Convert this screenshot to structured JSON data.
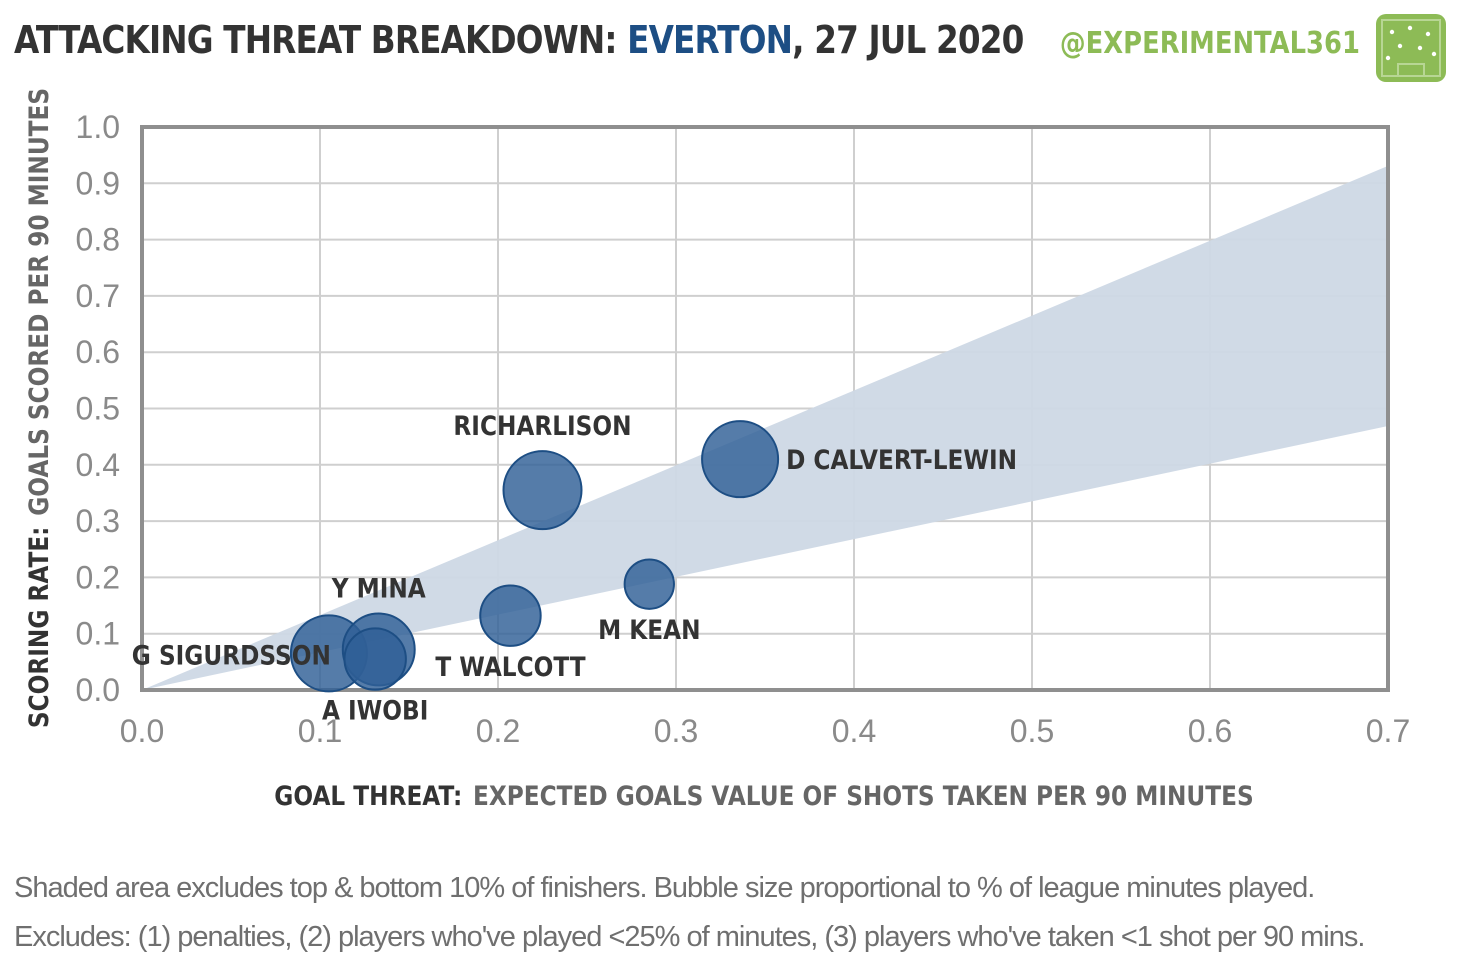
{
  "header": {
    "title_prefix": "ATTACKING THREAT BREAKDOWN:",
    "team": "EVERTON",
    "title_suffix": ", 27 JUL 2020",
    "brand": "@EXPERIMENTAL361",
    "logo_icon": "pitch-icon"
  },
  "colors": {
    "bubble": "#2f5f96",
    "bubble_stroke": "#1d4e84",
    "band": "#cdd8e5",
    "brand": "#8dbb56",
    "team": "#1d4e84"
  },
  "chart_data": {
    "type": "scatter",
    "title": "ATTACKING THREAT BREAKDOWN: EVERTON, 27 JUL 2020",
    "xlabel_bold": "GOAL THREAT:",
    "xlabel": "EXPECTED GOALS VALUE OF SHOTS TAKEN PER 90 MINUTES",
    "ylabel_bold": "SCORING RATE:",
    "ylabel": "GOALS SCORED PER 90 MINUTES",
    "xlim": [
      0,
      0.7
    ],
    "ylim": [
      0,
      1.0
    ],
    "xticks": [
      "0.0",
      "0.1",
      "0.2",
      "0.3",
      "0.4",
      "0.5",
      "0.6",
      "0.7"
    ],
    "yticks": [
      "0.0",
      "0.1",
      "0.2",
      "0.3",
      "0.4",
      "0.5",
      "0.6",
      "0.7",
      "0.8",
      "0.9",
      "1.0"
    ],
    "grid": true,
    "band": {
      "upper_slope": 1.33,
      "lower_slope": 0.67
    },
    "points": [
      {
        "name": "D CALVERT-LEWIN",
        "x": 0.336,
        "y": 0.41,
        "size": 0.95,
        "label_pos": "right"
      },
      {
        "name": "RICHARLISON",
        "x": 0.225,
        "y": 0.355,
        "size": 1.0,
        "label_pos": "top"
      },
      {
        "name": "M KEAN",
        "x": 0.285,
        "y": 0.188,
        "size": 0.4,
        "label_pos": "bottom"
      },
      {
        "name": "T WALCOTT",
        "x": 0.207,
        "y": 0.132,
        "size": 0.6,
        "label_pos": "bottom"
      },
      {
        "name": "Y MINA",
        "x": 0.133,
        "y": 0.072,
        "size": 0.85,
        "label_pos": "top"
      },
      {
        "name": "G SIGURDSSON",
        "x": 0.105,
        "y": 0.065,
        "size": 0.95,
        "label_pos": "left"
      },
      {
        "name": "A IWOBI",
        "x": 0.131,
        "y": 0.055,
        "size": 0.62,
        "label_pos": "bottom"
      }
    ]
  },
  "footnotes": {
    "line1": "Shaded area excludes top & bottom 10% of finishers. Bubble size proportional to % of league minutes played.",
    "line2": "Excludes: (1) penalties, (2) players who've played <25% of minutes, (3) players who've taken <1 shot per 90 mins."
  }
}
